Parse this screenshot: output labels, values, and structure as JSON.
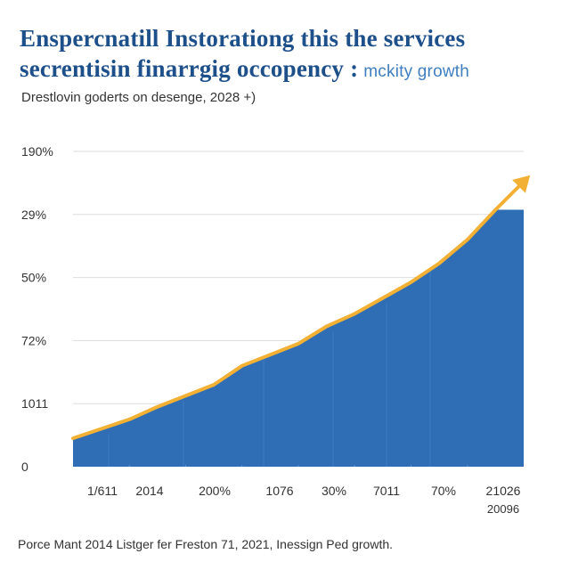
{
  "chart_data": {
    "type": "area",
    "title_line1": "Enspercnatill Instorationg this the services",
    "title_line2": "secrentisin finarrgig occopency :",
    "title_accent": "mckity growth",
    "subtitle": "Drestlovin goderts on desenge, 2028 +)",
    "footnote": "Porce Mant 2014 Listger fer Freston 71, 2021, Inessign Ped growth.",
    "y_tick_labels": [
      "0",
      "1011",
      "72%",
      "50%",
      "29%",
      "190%"
    ],
    "x_tick_labels": [
      "1/611",
      "2014",
      "200%",
      "1076",
      "30%",
      "7011",
      "70%",
      "21026"
    ],
    "x_extra_label": "20096",
    "x": [
      0,
      0.5,
      1,
      1.5,
      2,
      2.5,
      3,
      3.5,
      4,
      4.5,
      5,
      5.5,
      6,
      6.5,
      7,
      7.5
    ],
    "values": [
      0.9,
      1.2,
      1.5,
      1.9,
      2.25,
      2.6,
      3.2,
      3.55,
      3.9,
      4.45,
      4.85,
      5.35,
      5.85,
      6.45,
      7.2,
      8.15
    ],
    "ylim": [
      0,
      10
    ],
    "xlim": [
      0,
      8
    ],
    "grid": true,
    "growth_arrow": true,
    "colors": {
      "area": "#2f6db4",
      "line": "#f2b134",
      "title": "#1d4f8a",
      "grid": "#dddddd"
    }
  }
}
